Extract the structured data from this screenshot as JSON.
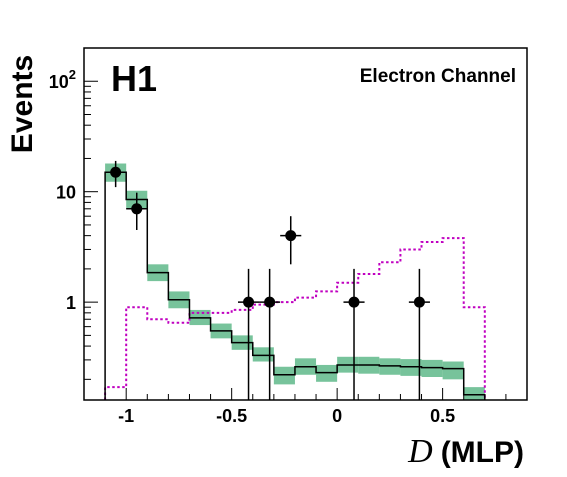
{
  "chart_data": {
    "type": "histogram",
    "experiment_label": "H1",
    "channel_label": "Electron Channel",
    "xlabel_var": "D",
    "xlabel_rest": "(MLP)",
    "ylabel": "Events",
    "xlim": [
      -1.2,
      0.9
    ],
    "ylim": [
      0.13,
      200
    ],
    "yscale": "log",
    "x_ticks": [
      {
        "value": -1,
        "label": "-1"
      },
      {
        "value": -0.5,
        "label": "-0.5"
      },
      {
        "value": 0,
        "label": "0"
      },
      {
        "value": 0.5,
        "label": "0.5"
      }
    ],
    "y_ticks": [
      {
        "value": 1,
        "label": "1",
        "sup": ""
      },
      {
        "value": 10,
        "label": "10",
        "sup": ""
      },
      {
        "value": 100,
        "label": "10",
        "sup": "2"
      }
    ],
    "bin_edges": [
      -1.1,
      -1.0,
      -0.9,
      -0.8,
      -0.7,
      -0.6,
      -0.5,
      -0.4,
      -0.3,
      -0.2,
      -0.1,
      0.0,
      0.1,
      0.2,
      0.3,
      0.4,
      0.5,
      0.6,
      0.7
    ],
    "series": [
      {
        "kind": "sm_prediction",
        "color": "#000000",
        "values": [
          15.0,
          8.5,
          1.85,
          1.05,
          0.72,
          0.55,
          0.43,
          0.33,
          0.22,
          0.26,
          0.23,
          0.27,
          0.27,
          0.265,
          0.26,
          0.255,
          0.25,
          0.145
        ],
        "band_low": [
          12.3,
          7.0,
          1.55,
          0.88,
          0.62,
          0.47,
          0.37,
          0.29,
          0.18,
          0.22,
          0.19,
          0.23,
          0.225,
          0.22,
          0.215,
          0.21,
          0.2,
          0.12
        ],
        "band_high": [
          18.0,
          10.2,
          2.2,
          1.25,
          0.85,
          0.64,
          0.5,
          0.39,
          0.26,
          0.31,
          0.27,
          0.32,
          0.32,
          0.31,
          0.305,
          0.3,
          0.29,
          0.17
        ],
        "band_color": "#5fb98a"
      },
      {
        "kind": "signal",
        "color": "#c000c0",
        "style": "dotted",
        "values": [
          0.17,
          0.9,
          0.7,
          0.65,
          0.8,
          0.8,
          0.85,
          0.95,
          1.0,
          1.1,
          1.25,
          1.5,
          1.8,
          2.3,
          3.0,
          3.5,
          3.8,
          0.9
        ]
      },
      {
        "kind": "data",
        "color": "#000000",
        "points": [
          {
            "x": -1.05,
            "y": 15,
            "ylo": 11,
            "yhi": 19
          },
          {
            "x": -0.95,
            "y": 7,
            "ylo": 4.5,
            "yhi": 9.8
          },
          {
            "x": -0.42,
            "y": 1,
            "ylo": 0.13,
            "yhi": 2.0
          },
          {
            "x": -0.32,
            "y": 1,
            "ylo": 0.13,
            "yhi": 2.0
          },
          {
            "x": -0.22,
            "y": 4,
            "ylo": 2.2,
            "yhi": 6.0
          },
          {
            "x": 0.08,
            "y": 1,
            "ylo": 0.13,
            "yhi": 2.0
          },
          {
            "x": 0.39,
            "y": 1,
            "ylo": 0.13,
            "yhi": 2.0
          }
        ],
        "x_err": 0.05
      }
    ]
  }
}
